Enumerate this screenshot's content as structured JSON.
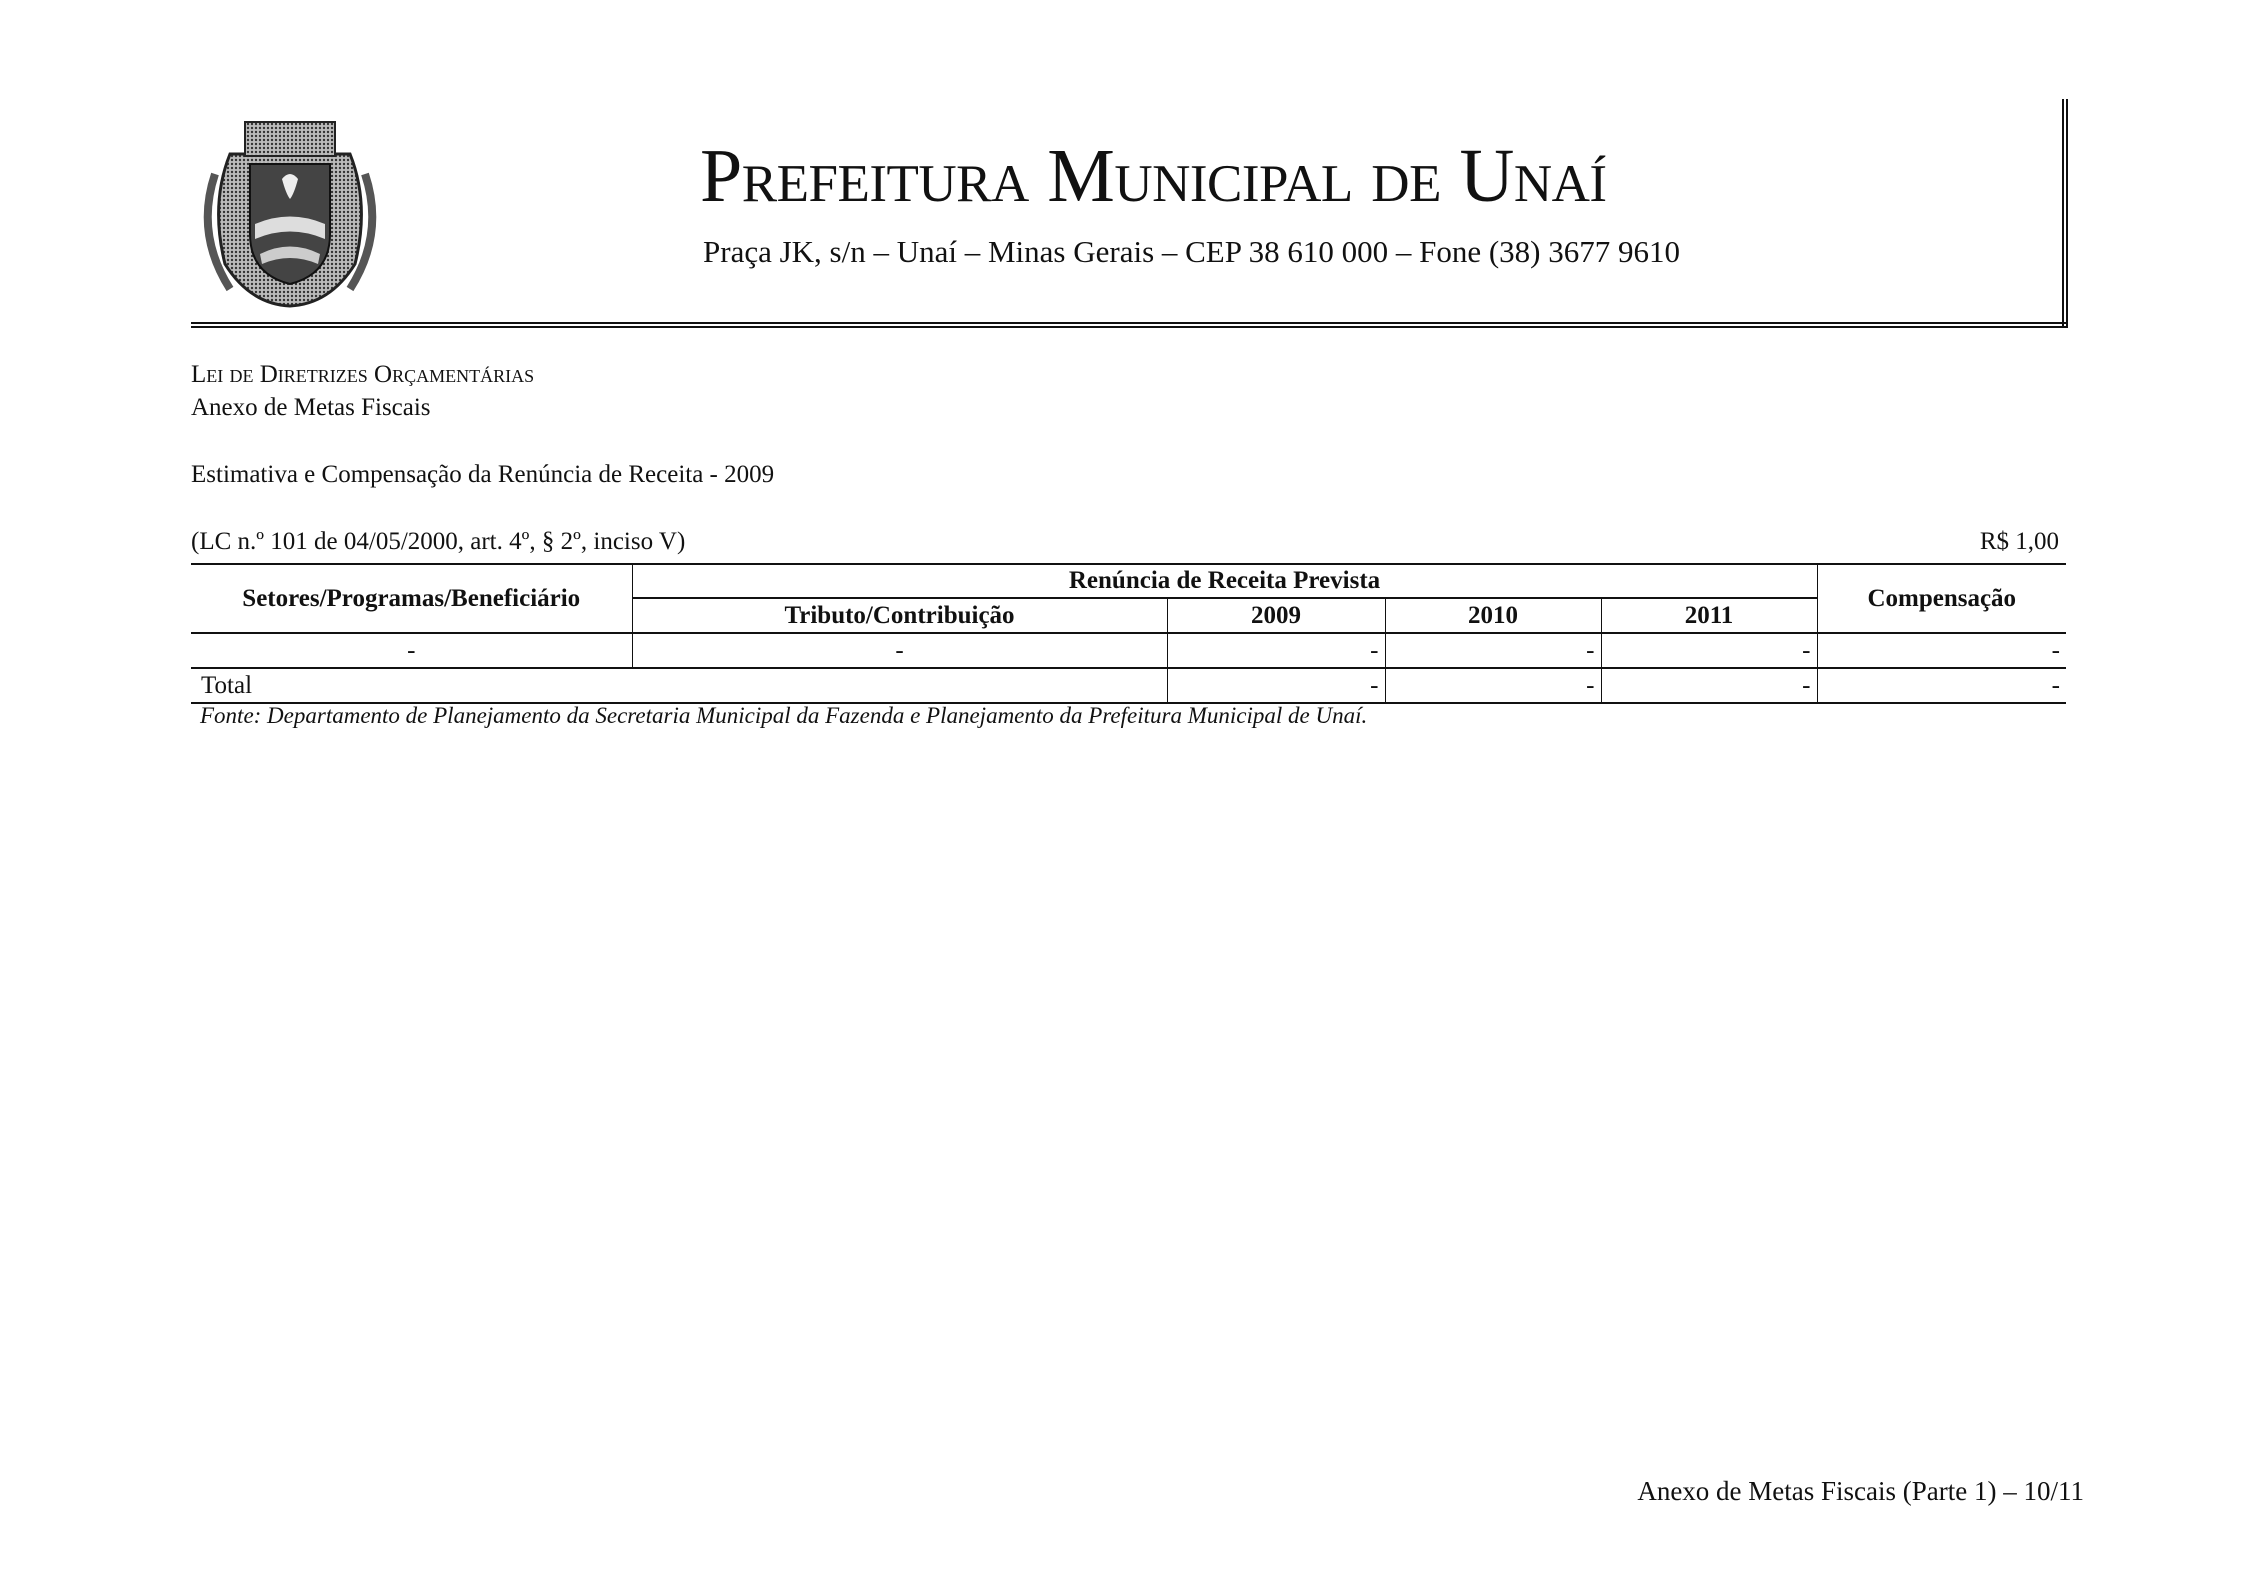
{
  "header": {
    "logo_name": "Brasão de Unaí",
    "title": "Prefeitura Municipal de Unaí",
    "address": "Praça JK, s/n – Unaí – Minas Gerais – CEP 38 610 000 – Fone (38) 3677 9610"
  },
  "doc": {
    "law": "Lei de Diretrizes Orçamentárias",
    "annex": "Anexo de Metas Fiscais",
    "subtitle": "Estimativa e Compensação da Renúncia de Receita - 2009",
    "legal_ref": "(LC n.º 101 de 04/05/2000, art. 4º, § 2º, inciso V)",
    "unit": "R$ 1,00"
  },
  "table": {
    "col_sector": "Setores/Programas/Beneficiário",
    "group_header": "Renúncia de Receita Prevista",
    "col_tributo": "Tributo/Contribuição",
    "years": [
      "2009",
      "2010",
      "2011"
    ],
    "col_comp": "Compensação",
    "row": {
      "sector": "-",
      "tributo": "-",
      "values": [
        "-",
        "-",
        "-"
      ],
      "comp": "-"
    },
    "total": {
      "label": "Total",
      "values": [
        "-",
        "-",
        "-"
      ],
      "comp": "-"
    },
    "source": "Fonte: Departamento de Planejamento da Secretaria Municipal da Fazenda e Planejamento da Prefeitura Municipal de Unaí."
  },
  "footer": {
    "page_label": "Anexo de Metas Fiscais (Parte 1) – 10/11"
  }
}
